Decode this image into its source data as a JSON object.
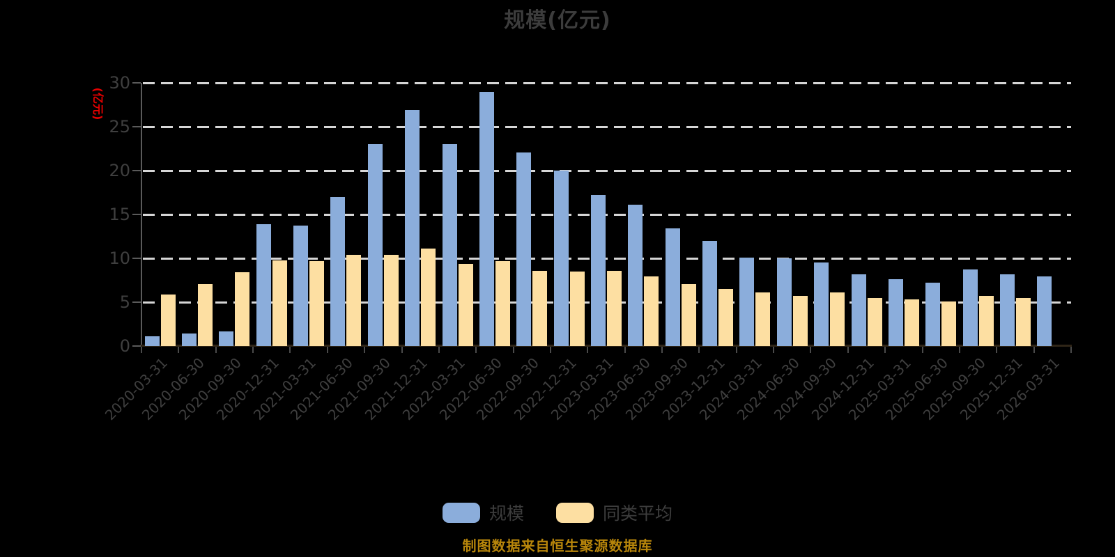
{
  "title": "规模(亿元)",
  "y_axis_name": "(亿元)",
  "footer": "制图数据来自恒生聚源数据库",
  "legend": [
    {
      "label": "规模",
      "color": "#8badDB"
    },
    {
      "label": "同类平均",
      "color": "#fddfa2"
    }
  ],
  "colors": {
    "background": "#000000",
    "title_text": "#3c3c3c",
    "axis_text": "#3f3f3f",
    "y_axis_name_red": "#e60000",
    "gridline": "#d6d6d6",
    "y_axis_line": "#5a5a5a",
    "x_axis_line": "#2f2517",
    "footer_gold": "#b8860b",
    "series_scale_blue": "#8badDB",
    "series_average_yellow": "#fddfa2"
  },
  "chart_data": {
    "type": "bar",
    "title": "规模(亿元)",
    "ylabel": "(亿元)",
    "xlabel": "",
    "ylim": [
      0,
      30
    ],
    "ytick_interval": 5,
    "grid": true,
    "grid_style": "dashed",
    "legend_position": "bottom",
    "categories": [
      "2020-03-31",
      "2020-06-30",
      "2020-09-30",
      "2020-12-31",
      "2021-03-31",
      "2021-06-30",
      "2021-09-30",
      "2021-12-31",
      "2022-03-31",
      "2022-06-30",
      "2022-09-30",
      "2022-12-31",
      "2023-03-31",
      "2023-06-30",
      "2023-09-30",
      "2023-12-31",
      "2024-03-31",
      "2024-06-30",
      "2024-09-30",
      "2024-12-31",
      "2025-03-31",
      "2025-06-30",
      "2025-09-30",
      "2025-12-31",
      "2026-03-31"
    ],
    "series": [
      {
        "name": "规模",
        "color": "#8badDB",
        "values": [
          1.1,
          1.4,
          1.7,
          13.9,
          13.7,
          17.0,
          23.0,
          26.9,
          23.0,
          29.0,
          22.1,
          20.0,
          17.2,
          16.1,
          13.4,
          12.0,
          10.1,
          10.0,
          9.5,
          8.2,
          7.6,
          7.2,
          8.7,
          8.2,
          7.9
        ]
      },
      {
        "name": "同类平均",
        "color": "#fddfa2",
        "values": [
          5.9,
          7.1,
          8.4,
          9.8,
          9.7,
          10.4,
          10.4,
          11.1,
          9.4,
          9.7,
          8.6,
          8.5,
          8.6,
          7.9,
          7.1,
          6.5,
          6.1,
          5.7,
          6.1,
          5.5,
          5.3,
          5.1,
          5.7,
          5.5,
          null
        ]
      }
    ]
  }
}
